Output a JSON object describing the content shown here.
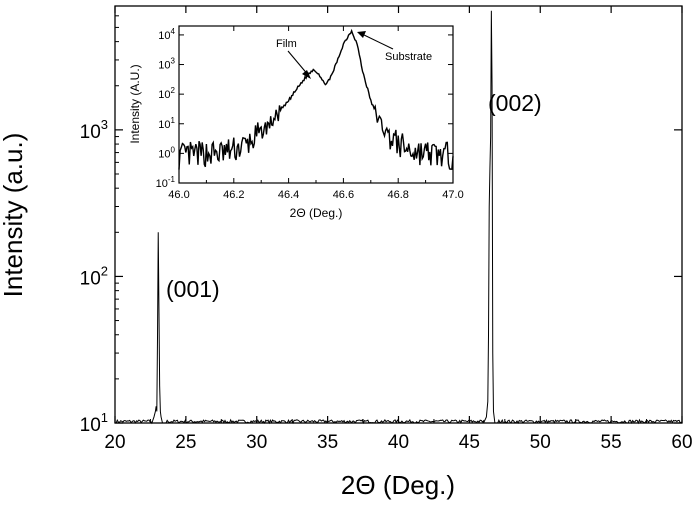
{
  "chart_data": [
    {
      "type": "line",
      "xlabel": "2Θ (Deg.)",
      "ylabel": "Intensity (a.u.)",
      "y_scale": "log",
      "xlim": [
        20,
        60
      ],
      "ylim": [
        10,
        7000
      ],
      "grid": false,
      "x_ticks": [
        "20",
        "25",
        "30",
        "35",
        "40",
        "45",
        "50",
        "55",
        "60"
      ],
      "y_ticks": [
        {
          "base": "10",
          "exp": "1"
        },
        {
          "base": "10",
          "exp": "2"
        },
        {
          "base": "10",
          "exp": "3"
        }
      ],
      "annotations": [
        "(001)",
        "(002)"
      ],
      "series": [
        {
          "x": [
            20.0,
            22.6,
            22.75,
            22.85,
            22.9,
            22.95,
            23.0,
            23.05,
            23.1,
            23.15,
            23.2,
            23.25,
            23.35,
            23.6,
            46.0,
            46.2,
            46.3,
            46.35,
            46.4,
            46.45,
            46.5,
            46.55,
            46.6,
            46.65,
            46.7,
            46.8,
            47.0,
            60.0
          ],
          "y": [
            10,
            10,
            11,
            12,
            13,
            12,
            40,
            200,
            60,
            18,
            12,
            11,
            10,
            10,
            10,
            11,
            14,
            40,
            300,
            550,
            900,
            6500,
            2000,
            30,
            12,
            10,
            10,
            10
          ]
        }
      ]
    },
    {
      "type": "line",
      "xlabel": "2Θ (Deg.)",
      "ylabel": "Intensity (A.U.)",
      "y_scale": "log",
      "xlim": [
        46.0,
        47.0
      ],
      "ylim": [
        0.1,
        20000
      ],
      "grid": false,
      "x_ticks": [
        "46.0",
        "46.2",
        "46.4",
        "46.6",
        "46.8",
        "47.0"
      ],
      "y_ticks": [
        {
          "base": "10",
          "exp": "-1"
        },
        {
          "base": "10",
          "exp": "0"
        },
        {
          "base": "10",
          "exp": "1"
        },
        {
          "base": "10",
          "exp": "2"
        },
        {
          "base": "10",
          "exp": "3"
        },
        {
          "base": "10",
          "exp": "4"
        }
      ],
      "annotations": [
        "Film",
        "Substrate"
      ],
      "series": [
        {
          "x": [
            46.0,
            46.05,
            46.1,
            46.15,
            46.2,
            46.25,
            46.3,
            46.35,
            46.4,
            46.43,
            46.46,
            46.49,
            46.51,
            46.53,
            46.55,
            46.58,
            46.6,
            46.63,
            46.65,
            46.67,
            46.7,
            46.72,
            46.75,
            46.8,
            46.85,
            46.9,
            46.95,
            47.0
          ],
          "y": [
            0.8,
            0.9,
            1.0,
            1.0,
            1.3,
            2.0,
            5,
            15,
            60,
            150,
            350,
            700,
            500,
            220,
            300,
            1500,
            5000,
            14000,
            5000,
            600,
            60,
            20,
            6,
            2.0,
            1.2,
            1.0,
            0.9,
            0.8
          ]
        }
      ]
    }
  ]
}
